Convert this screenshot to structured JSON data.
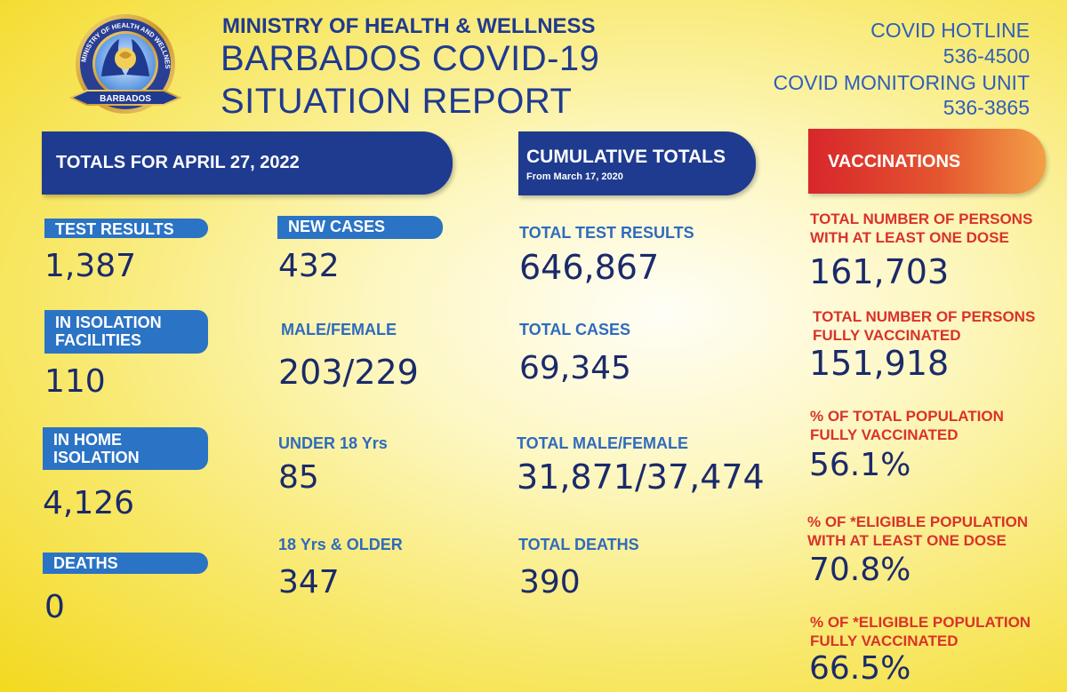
{
  "header": {
    "ministry": "MINISTRY OF HEALTH & WELLNESS",
    "title_line1": "BARBADOS COVID-19",
    "title_line2": "SITUATION REPORT",
    "logo": {
      "ring_text": "MINISTRY OF HEALTH AND WELLNESS",
      "ribbon_text": "BARBADOS",
      "icon": "hands-holding-globe-logo"
    },
    "hotline_label": "COVID HOTLINE",
    "hotline_number": "536-4500",
    "monitoring_label": "COVID MONITORING UNIT",
    "monitoring_number": "536-3865"
  },
  "daily": {
    "banner": "TOTALS FOR APRIL 27, 2022",
    "test_results_label": "TEST RESULTS",
    "test_results": "1,387",
    "isolation_facilities_label": "IN ISOLATION FACILITIES",
    "isolation_facilities_line1": "IN ISOLATION",
    "isolation_facilities_line2": "FACILITIES",
    "isolation_facilities": "110",
    "home_isolation_line1": "IN HOME",
    "home_isolation_line2": "ISOLATION",
    "home_isolation": "4,126",
    "deaths_label": "DEATHS",
    "deaths": "0",
    "new_cases_label": "NEW CASES",
    "new_cases": "432",
    "male_female_label": "MALE/FEMALE",
    "male_female": "203/229",
    "under18_label": "UNDER 18 Yrs",
    "under18": "85",
    "over18_label": "18 Yrs & OLDER",
    "over18": "347"
  },
  "cumulative": {
    "banner_line1": "CUMULATIVE TOTALS",
    "banner_line2": "From March 17, 2020",
    "total_tests_label": "TOTAL TEST RESULTS",
    "total_tests": "646,867",
    "total_cases_label": "TOTAL CASES",
    "total_cases": "69,345",
    "total_male_female_label": "TOTAL MALE/FEMALE",
    "total_male_female": "31,871/37,474",
    "total_deaths_label": "TOTAL DEATHS",
    "total_deaths": "390"
  },
  "vaccinations": {
    "banner": "VACCINATIONS",
    "one_dose_line1": "TOTAL NUMBER OF PERSONS",
    "one_dose_line2": "WITH AT LEAST ONE DOSE",
    "one_dose": "161,703",
    "fully_line1": "TOTAL NUMBER OF PERSONS",
    "fully_line2": "FULLY VACCINATED",
    "fully": "151,918",
    "pct_total_line1": "% OF TOTAL POPULATION",
    "pct_total_line2": "FULLY VACCINATED",
    "pct_total": "56.1%",
    "pct_eligible_one_line1": "% OF *ELIGIBLE POPULATION",
    "pct_eligible_one_line2": "WITH AT LEAST ONE DOSE",
    "pct_eligible_one": "70.8%",
    "pct_eligible_full_line1": "% OF *ELIGIBLE POPULATION",
    "pct_eligible_full_line2": "FULLY VACCINATED",
    "pct_eligible_full": "66.5%"
  },
  "colors": {
    "navy": "#1e3b8f",
    "pill_blue": "#2b73c4",
    "label_blue": "#2f6bbd",
    "label_red": "#d9322b",
    "value_navy": "#1b2a6b",
    "background_yellow": "#f3d91f"
  }
}
